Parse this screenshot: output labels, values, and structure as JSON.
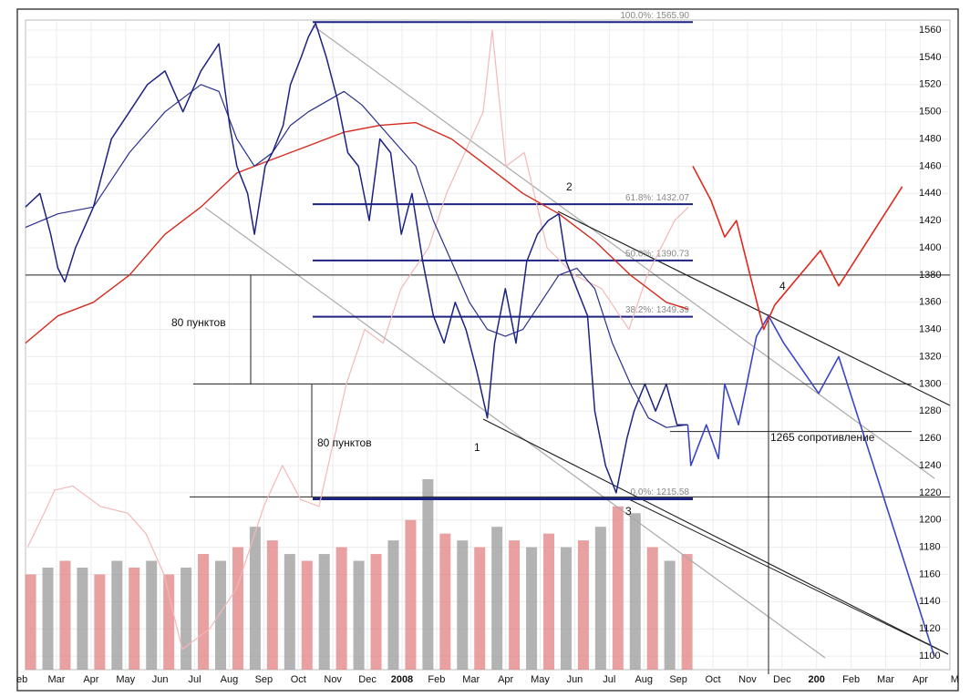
{
  "chart_data": {
    "type": "line",
    "xlim": [
      0.103,
      26.86
    ],
    "ylim": [
      1090,
      1567.4
    ],
    "yticks": [
      1560,
      1540,
      1520,
      1500,
      1480,
      1460,
      1440,
      1420,
      1400,
      1380,
      1360,
      1340,
      1320,
      1300,
      1280,
      1260,
      1240,
      1220,
      1200,
      1180,
      1160,
      1140,
      1120,
      1100
    ],
    "xticks": [
      {
        "value": 0,
        "label": "eb"
      },
      {
        "value": 1,
        "label": "Mar"
      },
      {
        "value": 2,
        "label": "Apr"
      },
      {
        "value": 3,
        "label": "May"
      },
      {
        "value": 4,
        "label": "Jun"
      },
      {
        "value": 5,
        "label": "Jul"
      },
      {
        "value": 6,
        "label": "Aug"
      },
      {
        "value": 7,
        "label": "Sep"
      },
      {
        "value": 8,
        "label": "Oct"
      },
      {
        "value": 9,
        "label": "Nov"
      },
      {
        "value": 10,
        "label": "Dec"
      },
      {
        "value": 11,
        "label": "2008"
      },
      {
        "value": 12,
        "label": "Feb"
      },
      {
        "value": 13,
        "label": "Mar"
      },
      {
        "value": 14,
        "label": "Apr"
      },
      {
        "value": 15,
        "label": "May"
      },
      {
        "value": 16,
        "label": "Jun"
      },
      {
        "value": 17,
        "label": "Jul"
      },
      {
        "value": 18,
        "label": "Aug"
      },
      {
        "value": 19,
        "label": "Sep"
      },
      {
        "value": 20,
        "label": "Oct"
      },
      {
        "value": 21,
        "label": "Nov"
      },
      {
        "value": 22,
        "label": "Dec"
      },
      {
        "value": 23,
        "label": "200"
      },
      {
        "value": 24,
        "label": "Feb"
      },
      {
        "value": 25,
        "label": "Mar"
      },
      {
        "value": 26,
        "label": "Apr"
      },
      {
        "value": 27,
        "label": "M"
      }
    ],
    "grid": true,
    "volume": {
      "colors": [
        "#e08080",
        "#9a9a9a"
      ],
      "x": [
        0.25,
        0.75,
        1.25,
        1.75,
        2.25,
        2.75,
        3.25,
        3.75,
        4.25,
        4.75,
        5.25,
        5.75,
        6.25,
        6.75,
        7.25,
        7.75,
        8.25,
        8.75,
        9.25,
        9.75,
        10.25,
        10.75,
        11.25,
        11.75,
        12.25,
        12.75,
        13.25,
        13.75,
        14.25,
        14.75,
        15.25,
        15.75,
        16.25,
        16.75,
        17.25,
        17.75,
        18.25,
        18.75,
        19.25
      ],
      "values": [
        1160,
        1165,
        1170,
        1165,
        1160,
        1170,
        1165,
        1170,
        1160,
        1165,
        1175,
        1170,
        1180,
        1195,
        1185,
        1175,
        1170,
        1175,
        1180,
        1170,
        1175,
        1185,
        1200,
        1230,
        1190,
        1185,
        1180,
        1195,
        1185,
        1180,
        1190,
        1180,
        1185,
        1195,
        1210,
        1205,
        1180,
        1170,
        1175
      ]
    },
    "series": [
      {
        "color": "#f4b8b8",
        "width": 1.2,
        "x": [
          0.16,
          0.55,
          0.95,
          1.47,
          2.27,
          3.06,
          3.59,
          4.11,
          4.64,
          5.43,
          6.22,
          7.0,
          7.54,
          8.07,
          8.6,
          9.39,
          9.92,
          10.45,
          10.97,
          11.77,
          12.29,
          12.82,
          13.35,
          13.61,
          14.01,
          14.54,
          15.2,
          15.99,
          16.78,
          17.57,
          18.1,
          18.89,
          19.29
        ],
        "values": [
          1180,
          1200,
          1222,
          1225,
          1210,
          1205,
          1190,
          1160,
          1105,
          1120,
          1150,
          1210,
          1240,
          1215,
          1210,
          1300,
          1340,
          1330,
          1370,
          1400,
          1440,
          1470,
          1500,
          1560,
          1460,
          1470,
          1400,
          1380,
          1370,
          1340,
          1380,
          1420,
          1430
        ]
      },
      {
        "color": "#d62a1e",
        "width": 1.4,
        "x": [
          0.1,
          1.04,
          2.07,
          3.11,
          4.14,
          5.18,
          6.22,
          7.25,
          8.29,
          9.32,
          10.36,
          11.4,
          12.43,
          13.47,
          14.5,
          15.54,
          16.58,
          17.61,
          18.65,
          19.27
        ],
        "values": [
          1330,
          1350,
          1360,
          1380,
          1410,
          1430,
          1455,
          1465,
          1475,
          1485,
          1490,
          1492,
          1480,
          1460,
          1440,
          1425,
          1405,
          1380,
          1360,
          1355
        ]
      },
      {
        "color": "#2a2f8a",
        "width": 1.2,
        "x": [
          0.1,
          1.04,
          2.07,
          3.11,
          4.14,
          5.18,
          5.7,
          6.22,
          6.73,
          7.25,
          7.77,
          8.29,
          9.32,
          9.84,
          10.36,
          11.4,
          11.91,
          12.43,
          12.95,
          13.47,
          13.99,
          14.5,
          15.02,
          15.54,
          16.06,
          16.58,
          17.09,
          17.61,
          18.13,
          18.65,
          19.27
        ],
        "values": [
          1415,
          1425,
          1430,
          1470,
          1500,
          1520,
          1515,
          1480,
          1460,
          1470,
          1490,
          1500,
          1515,
          1505,
          1490,
          1460,
          1420,
          1390,
          1360,
          1340,
          1335,
          1340,
          1360,
          1380,
          1385,
          1370,
          1330,
          1300,
          1275,
          1268,
          1270
        ]
      },
      {
        "color": "#1c2380",
        "width": 1.5,
        "x": [
          0.1,
          0.52,
          0.83,
          1.04,
          1.24,
          1.55,
          2.07,
          2.59,
          3.11,
          3.63,
          4.14,
          4.66,
          5.18,
          5.7,
          6.01,
          6.22,
          6.53,
          6.73,
          7.04,
          7.25,
          7.56,
          7.77,
          8.08,
          8.29,
          8.5,
          8.81,
          9.12,
          9.43,
          9.74,
          10.05,
          10.36,
          10.67,
          10.98,
          11.29,
          11.6,
          11.91,
          12.22,
          12.54,
          12.85,
          13.16,
          13.47,
          13.68,
          13.99,
          14.3,
          14.61,
          14.92,
          15.23,
          15.54,
          15.75,
          16.06,
          16.37,
          16.58,
          16.89,
          17.2,
          17.51,
          17.72,
          18.03,
          18.34,
          18.65,
          18.96,
          19.27
        ],
        "values": [
          1430,
          1440,
          1410,
          1385,
          1375,
          1400,
          1430,
          1480,
          1500,
          1520,
          1530,
          1500,
          1530,
          1550,
          1490,
          1460,
          1440,
          1410,
          1460,
          1470,
          1490,
          1520,
          1540,
          1555,
          1565,
          1540,
          1510,
          1470,
          1460,
          1420,
          1480,
          1470,
          1410,
          1440,
          1390,
          1350,
          1330,
          1360,
          1340,
          1310,
          1275,
          1330,
          1370,
          1330,
          1390,
          1410,
          1420,
          1425,
          1390,
          1370,
          1350,
          1280,
          1240,
          1220,
          1260,
          1280,
          1300,
          1280,
          1300,
          1270,
          1270
        ]
      },
      {
        "color": "#3a45c8",
        "width": 1.6,
        "x": [
          19.27,
          19.36,
          19.81,
          20.16,
          20.34,
          20.74,
          21.26,
          21.61,
          22.05,
          23.06,
          23.64,
          26.41
        ],
        "values": [
          1270,
          1240,
          1270,
          1245,
          1300,
          1270,
          1335,
          1350,
          1330,
          1293,
          1320,
          1100
        ]
      },
      {
        "color": "#e0281c",
        "width": 1.6,
        "x": [
          19.42,
          19.94,
          20.34,
          20.68,
          21.47,
          21.79,
          23.11,
          23.64,
          25.48
        ],
        "values": [
          1460,
          1435,
          1408,
          1420,
          1340,
          1358,
          1398,
          1372,
          1445
        ]
      }
    ],
    "fib_levels": [
      {
        "value": 1565.9,
        "label": "100.0%: 1565.90"
      },
      {
        "value": 1432.07,
        "label": "61.8%: 1432.07"
      },
      {
        "value": 1390.73,
        "label": "50.0%: 1390.73"
      },
      {
        "value": 1349.39,
        "label": "38.2%: 1349.39"
      },
      {
        "value": 1215.58,
        "label": "0.0%: 1215.58"
      }
    ],
    "levels": [
      1380,
      1300,
      1217,
      1265
    ],
    "annotations": [
      "80 пунктов",
      "80 пунктов",
      "1265 сопротивление",
      "1",
      "2",
      "3",
      "4"
    ]
  }
}
